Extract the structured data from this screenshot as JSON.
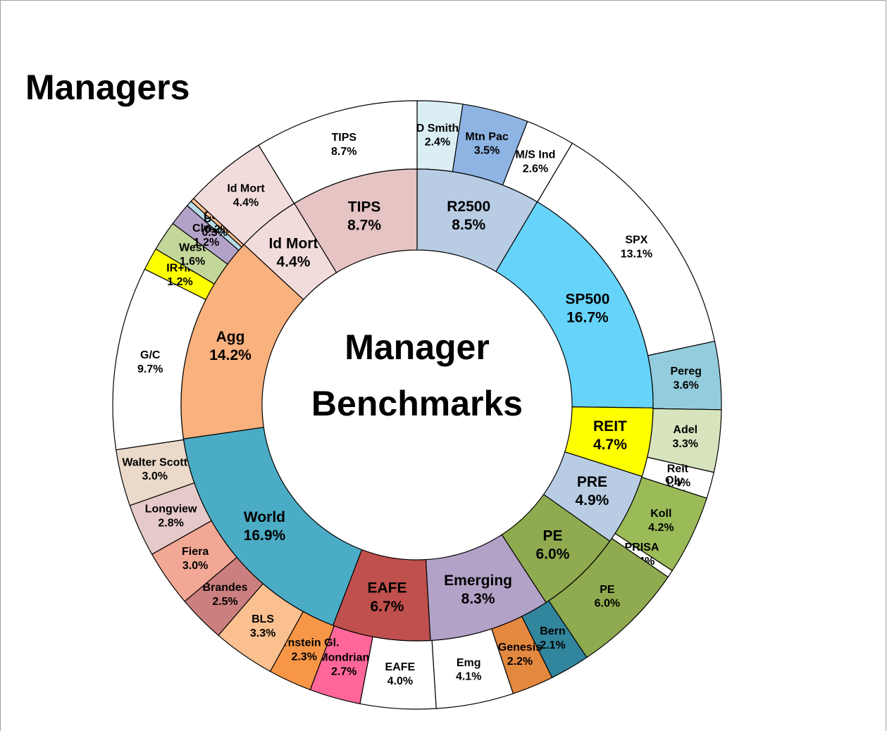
{
  "chart_data": {
    "type": "donut",
    "title": "Managers",
    "center_label": [
      "Manager",
      "Benchmarks"
    ],
    "inner": {
      "categories": [
        "R2500",
        "SP500",
        "REIT",
        "PRE",
        "PE",
        "Emerging",
        "EAFE",
        "World",
        "Agg",
        "Id Mort",
        "TIPS"
      ],
      "values": [
        8.5,
        16.7,
        4.7,
        4.9,
        6.0,
        8.3,
        6.7,
        16.9,
        14.2,
        4.4,
        8.7
      ],
      "value_labels": [
        "8.5%",
        "16.7%",
        "4.7%",
        "4.9%",
        "6.0%",
        "8.3%",
        "6.7%",
        "16.9%",
        "14.2%",
        "4.4%",
        "8.7%"
      ],
      "colors": [
        "#b8cce4",
        "#66d4fa",
        "#ffff00",
        "#b8cce4",
        "#8faa4f",
        "#b3a2c7",
        "#c0504d",
        "#4bacc6",
        "#f9b17e",
        "#f2dcdb",
        "#e6c4c4"
      ]
    },
    "outer": {
      "categories": [
        "D Smith",
        "Mtn Pac",
        "M/S Ind",
        "SPX",
        "Pereg",
        "Adel",
        "Reit",
        "Oly",
        "Koll",
        "PRISA",
        "PE",
        "Bern",
        "Genesis",
        "Emg",
        "EAFE",
        "Mondrian",
        "Bernstein Gl.",
        "BLS",
        "Brandes",
        "Fiera",
        "Longview",
        "Walter Scott",
        "G/C",
        "IR+M",
        "West",
        "Clwtr",
        "Dup",
        "Cash",
        "Id Mort",
        "TIPS"
      ],
      "values": [
        2.4,
        3.5,
        2.6,
        13.1,
        3.6,
        3.3,
        1.4,
        0.0,
        4.2,
        0.4,
        6.0,
        2.1,
        2.2,
        4.1,
        4.0,
        2.7,
        2.3,
        3.3,
        2.5,
        3.0,
        2.8,
        3.0,
        9.7,
        1.2,
        1.6,
        1.2,
        0.3,
        0.2,
        4.4,
        8.7
      ],
      "value_labels": [
        "2.4%",
        "3.5%",
        "2.6%",
        "13.1%",
        "3.6%",
        "3.3%",
        "1.4%",
        "0.0%",
        "4.2%",
        "0.4%",
        "6.0%",
        "2.1%",
        "2.2%",
        "4.1%",
        "4.0%",
        "2.7%",
        "2.3%",
        "3.3%",
        "2.5%",
        "3.0%",
        "2.8%",
        "3.0%",
        "9.7%",
        "1.2%",
        "1.6%",
        "1.2%",
        "0.3%",
        "0.2%",
        "4.4%",
        "8.7%"
      ],
      "colors": [
        "#daeef3",
        "#8eb4e3",
        "#ffffff",
        "#ffffff",
        "#93cddd",
        "#d7e4bd",
        "#ffffff",
        "#ffffff",
        "#9bbb59",
        "#ffffff",
        "#8faa4f",
        "#31859c",
        "#e3883f",
        "#ffffff",
        "#ffffff",
        "#ff6699",
        "#f79646",
        "#fac090",
        "#cc7f7f",
        "#f2a894",
        "#e6c9c9",
        "#ebd9c9",
        "#ffffff",
        "#ffff00",
        "#c4d79b",
        "#b3a2c7",
        "#b7dde8",
        "#fac090",
        "#f2dcdb",
        "#ffffff"
      ]
    }
  }
}
